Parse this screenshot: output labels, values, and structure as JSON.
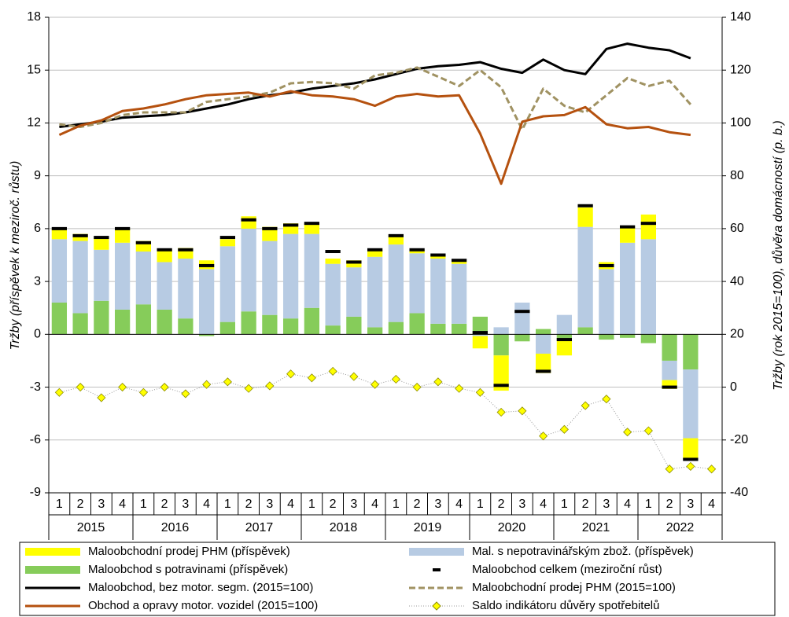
{
  "chart_data": {
    "type": "bar-line-combo",
    "y_label": "Tržby (příspěvek k meziroč. růstu)",
    "y2_label": "Tržby (rok 2015=100), důvěra domácností (p. b.)",
    "categories": [
      "1",
      "2",
      "3",
      "4",
      "1",
      "2",
      "3",
      "4",
      "1",
      "2",
      "3",
      "4",
      "1",
      "2",
      "3",
      "4",
      "1",
      "2",
      "3",
      "4",
      "1",
      "2",
      "3",
      "4",
      "1",
      "2",
      "3",
      "4",
      "1",
      "2",
      "3",
      "4"
    ],
    "years": [
      "2015",
      "2016",
      "2017",
      "2018",
      "2019",
      "2020",
      "2021",
      "2022"
    ],
    "ylim": [
      -9,
      18
    ],
    "yticks": [
      -9,
      -6,
      -3,
      0,
      3,
      6,
      9,
      12,
      15,
      18
    ],
    "y2lim": [
      -40,
      140
    ],
    "y2ticks": [
      -40,
      -20,
      0,
      20,
      40,
      60,
      80,
      100,
      120,
      140
    ],
    "grid": true,
    "series": [
      {
        "name": "Maloobchodní prodej PHM (příspěvek)",
        "type": "bar",
        "color": "#ffff00",
        "values": [
          0.6,
          0.4,
          0.7,
          0.8,
          0.6,
          0.7,
          0.6,
          0.5,
          0.4,
          0.7,
          0.8,
          0.6,
          0.6,
          0.3,
          0.4,
          0.4,
          0.5,
          0.2,
          0.2,
          0.2,
          -0.7,
          -2.0,
          0.0,
          -1.1,
          -0.9,
          1.1,
          0.4,
          0.9,
          1.4,
          -0.5,
          -1.2,
          null
        ]
      },
      {
        "name": "Mal. s nepotravinářským zbož. (příspěvek)",
        "type": "bar",
        "color": "#b7cbe3",
        "values": [
          3.6,
          4.1,
          2.9,
          3.8,
          3.0,
          2.7,
          3.4,
          3.7,
          4.3,
          4.7,
          4.2,
          4.8,
          4.2,
          3.5,
          2.8,
          4.0,
          4.4,
          3.4,
          3.7,
          3.4,
          -0.1,
          0.4,
          1.8,
          -1.1,
          1.1,
          5.7,
          3.7,
          5.2,
          5.4,
          -1.1,
          -3.9,
          null
        ]
      },
      {
        "name": "Maloobchod s potravinami (příspěvek)",
        "type": "bar",
        "color": "#86cc5a",
        "values": [
          1.8,
          1.2,
          1.9,
          1.4,
          1.7,
          1.4,
          0.9,
          -0.1,
          0.7,
          1.3,
          1.1,
          0.9,
          1.5,
          0.5,
          1.0,
          0.4,
          0.7,
          1.2,
          0.6,
          0.6,
          1.0,
          -1.2,
          -0.4,
          0.3,
          -0.3,
          0.4,
          -0.3,
          -0.2,
          -0.5,
          -1.5,
          -2.0,
          null
        ]
      },
      {
        "name": "Maloobchod celkem (meziroční růst)",
        "type": "dash",
        "color": "#000000",
        "values": [
          6.0,
          5.6,
          5.5,
          6.0,
          5.2,
          4.8,
          4.8,
          3.9,
          5.5,
          6.5,
          6.0,
          6.2,
          6.3,
          4.7,
          4.1,
          4.8,
          5.6,
          4.8,
          4.5,
          4.2,
          0.1,
          -2.9,
          1.3,
          -2.1,
          -0.3,
          7.3,
          3.9,
          6.1,
          6.3,
          -3.0,
          -7.1,
          null
        ]
      },
      {
        "name": "Maloobchod, bez motor. segm. (2015=100)",
        "type": "line",
        "axis": "y2",
        "color": "#000000",
        "values": [
          98.5,
          99.5,
          100.5,
          102,
          102.5,
          103,
          104,
          105.5,
          107,
          109,
          110.5,
          111.5,
          113,
          114,
          115,
          116.5,
          118.5,
          120.5,
          121.5,
          122,
          123,
          120.5,
          119,
          124,
          120,
          118.5,
          128,
          130,
          128.5,
          127.5,
          124.5,
          null
        ]
      },
      {
        "name": "Maloobchodní prodej PHM (2015=100)",
        "type": "line",
        "axis": "y2",
        "style": "dashed",
        "color": "#a09262",
        "values": [
          99.5,
          98.5,
          100,
          103,
          104,
          104,
          104,
          108,
          109,
          110,
          111.5,
          115,
          115.5,
          115,
          113,
          118,
          119,
          121,
          117.5,
          114,
          120,
          113.5,
          97.5,
          113,
          106.5,
          104,
          110.5,
          117,
          114,
          116,
          107,
          null
        ]
      },
      {
        "name": "Obchod a opravy motor. vozidel (2015=100)",
        "type": "line",
        "axis": "y2",
        "color": "#b5510f",
        "values": [
          95.5,
          99,
          101,
          104.5,
          105.5,
          107,
          109,
          110.5,
          111,
          111.5,
          110,
          112,
          110.5,
          110,
          109,
          106.5,
          110,
          111,
          110,
          110.5,
          96,
          77,
          100.5,
          102.5,
          103,
          106,
          99.5,
          98,
          98.5,
          96.5,
          95.5,
          null
        ]
      },
      {
        "name": "Saldo indikátoru důvěry spotřebitelů",
        "type": "marker",
        "axis": "y2",
        "color": "#ffff00",
        "values": [
          -2,
          0,
          -4,
          0,
          -2,
          0,
          -2.5,
          1,
          2,
          -0.5,
          0.5,
          5,
          3.5,
          6,
          4,
          1,
          3,
          0,
          2,
          -0.5,
          -2,
          -9.5,
          -9,
          -18.5,
          -16,
          -7,
          -4.5,
          -17,
          -16.5,
          -31,
          -30,
          -31
        ]
      }
    ]
  }
}
